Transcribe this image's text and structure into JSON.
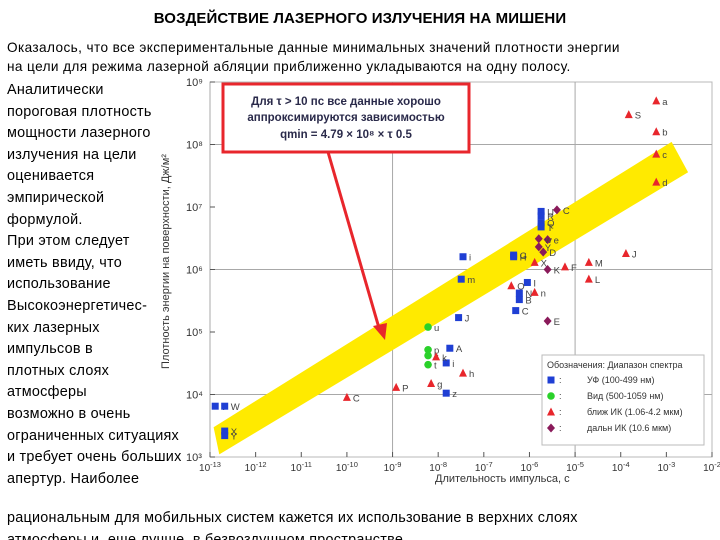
{
  "slide": {
    "title": "ВОЗДЕЙСТВИЕ ЛАЗЕРНОГО ИЗЛУЧЕНИЯ НА МИШЕНИ",
    "intro_lines": [
      "Оказалось, что все экспериментальные данные минимальных значений плотности энергии",
      "на цели для режима лазерной абляции приближенно укладываются на одну полосу."
    ],
    "side_lines": [
      "Аналитически",
      "пороговая плотность",
      "мощности лазерного",
      "излучения на цели",
      "оценивается",
      "эмпирической",
      "формулой.",
      "При этом следует",
      "иметь ввиду, что",
      "использование",
      "Высокоэнергетичес-",
      "ких лазерных",
      "импульсов в",
      "плотных слоях",
      "атмосферы",
      "возможно в очень",
      "ограниченных ситуациях",
      "и требует очень больших",
      "апертур. Наиболее"
    ],
    "tail_lines": [
      "рациональным для мобильных систем кажется их использование в верхних слоях",
      "атмосферы и, еще лучше, в безвоздушном пространстве."
    ]
  },
  "chart_data": {
    "type": "scatter",
    "xscale": "log",
    "yscale": "log",
    "xlabel": "Длительность импульса, с",
    "ylabel": "Плотность энергии на поверхности, Дж/м²",
    "xlim": [
      1e-13,
      0.01
    ],
    "ylim": [
      1000,
      1000000000
    ],
    "x_ticks": [
      {
        "value": 1e-13,
        "label": "10-13"
      },
      {
        "value": 1e-12,
        "label": "10-12"
      },
      {
        "value": 1e-11,
        "label": "10-11"
      },
      {
        "value": 1e-10,
        "label": "10-10"
      },
      {
        "value": 1e-09,
        "label": "10-9"
      },
      {
        "value": 1e-08,
        "label": "10-8"
      },
      {
        "value": 1e-07,
        "label": "10-7"
      },
      {
        "value": 1e-06,
        "label": "10-6"
      },
      {
        "value": 1e-05,
        "label": "10-5"
      },
      {
        "value": 0.0001,
        "label": "10-4"
      },
      {
        "value": 0.001,
        "label": "10-3"
      },
      {
        "value": 0.01,
        "label": "10-2"
      }
    ],
    "y_ticks": [
      {
        "value": 1000,
        "label": "10³"
      },
      {
        "value": 10000,
        "label": "10⁴"
      },
      {
        "value": 100000,
        "label": "10⁵"
      },
      {
        "value": 1000000,
        "label": "10⁶"
      },
      {
        "value": 10000000,
        "label": "10⁷"
      },
      {
        "value": 100000000,
        "label": "10⁸"
      },
      {
        "value": 1000000000,
        "label": "10⁹"
      }
    ],
    "grid_lines": {
      "x": [
        1e-13,
        1e-09,
        1e-05
      ],
      "y": [
        10000,
        1000000,
        100000000
      ]
    },
    "callout": {
      "line1": "Для τ > 10 пс все данные хорошо",
      "line2": "аппроксимируются зависимостью",
      "line3": "qmin = 4.79 × 10⁸ × τ 0.5",
      "border_color": "#e8262c"
    },
    "band": {
      "color": "#ffea00",
      "lower": [
        {
          "x": 1.6e-13,
          "y": 1100
        },
        {
          "x": 0.003,
          "y": 36000000
        }
      ],
      "upper": [
        {
          "x": 1.2e-13,
          "y": 3000
        },
        {
          "x": 0.0013,
          "y": 110000000
        }
      ]
    },
    "legend": {
      "title": "Обозначения: Диапазон спектра",
      "entries": [
        {
          "marker": "square",
          "color": "#1f3fd4",
          "label": "УФ (100-499 нм)"
        },
        {
          "marker": "circle",
          "color": "#2ad12a",
          "label": "Вид (500-1059 нм)"
        },
        {
          "marker": "triangle",
          "color": "#e8262c",
          "label": "ближ ИК (1.06-4.2 мкм)"
        },
        {
          "marker": "diamond",
          "color": "#8a1a5a",
          "label": "дальн ИК (10.6 мкм)"
        }
      ]
    },
    "series": [
      {
        "name": "УФ (100-499 нм)",
        "marker": "square",
        "color": "#1f3fd4",
        "points": [
          {
            "x": 1.3e-13,
            "y": 6500,
            "label": "v"
          },
          {
            "x": 2.1e-13,
            "y": 6500,
            "label": "W"
          },
          {
            "x": 2.1e-13,
            "y": 2600,
            "label": "X"
          },
          {
            "x": 2.1e-13,
            "y": 2200,
            "label": "Y"
          },
          {
            "x": 3.5e-08,
            "y": 1600000,
            "label": "i"
          },
          {
            "x": 3.2e-08,
            "y": 700000,
            "label": "m"
          },
          {
            "x": 2.8e-08,
            "y": 170000,
            "label": "J"
          },
          {
            "x": 1.8e-08,
            "y": 55000,
            "label": "A"
          },
          {
            "x": 1.5e-08,
            "y": 32000,
            "label": "i"
          },
          {
            "x": 1.5e-08,
            "y": 10500,
            "label": "z"
          },
          {
            "x": 4.5e-07,
            "y": 1700000,
            "label": "G"
          },
          {
            "x": 4.5e-07,
            "y": 1600000,
            "label": "H"
          },
          {
            "x": 9e-07,
            "y": 620000,
            "label": "I"
          },
          {
            "x": 6e-07,
            "y": 420000,
            "label": "N"
          },
          {
            "x": 6e-07,
            "y": 330000,
            "label": "B"
          },
          {
            "x": 5e-07,
            "y": 220000,
            "label": "C"
          },
          {
            "x": 1.8e-06,
            "y": 8500000,
            "label": "U"
          },
          {
            "x": 1.8e-06,
            "y": 7200000,
            "label": "R"
          },
          {
            "x": 1.8e-06,
            "y": 5600000,
            "label": "Q"
          },
          {
            "x": 1.8e-06,
            "y": 4800000,
            "label": "T"
          }
        ]
      },
      {
        "name": "Вид (500-1059 нм)",
        "marker": "circle",
        "color": "#2ad12a",
        "points": [
          {
            "x": 6e-09,
            "y": 120000,
            "label": "u"
          },
          {
            "x": 6e-09,
            "y": 52000,
            "label": "p"
          },
          {
            "x": 6e-09,
            "y": 42000,
            "label": "s"
          },
          {
            "x": 6e-09,
            "y": 30000,
            "label": "t"
          }
        ]
      },
      {
        "name": "ближ ИК (1.06-4.2 мкм)",
        "marker": "triangle",
        "color": "#e8262c",
        "points": [
          {
            "x": 0.0006,
            "y": 500000000,
            "label": "a"
          },
          {
            "x": 0.0006,
            "y": 160000000,
            "label": "b"
          },
          {
            "x": 0.0006,
            "y": 70000000,
            "label": "c"
          },
          {
            "x": 0.0006,
            "y": 25000000,
            "label": "d"
          },
          {
            "x": 0.00015,
            "y": 300000000,
            "label": "S"
          },
          {
            "x": 0.00013,
            "y": 1800000,
            "label": "J"
          },
          {
            "x": 2e-05,
            "y": 1300000,
            "label": "M"
          },
          {
            "x": 2e-05,
            "y": 700000,
            "label": "L"
          },
          {
            "x": 6e-06,
            "y": 1100000,
            "label": "F"
          },
          {
            "x": 1.3e-06,
            "y": 1300000,
            "label": "X"
          },
          {
            "x": 1.3e-06,
            "y": 430000,
            "label": "n"
          },
          {
            "x": 4e-07,
            "y": 550000,
            "label": "O"
          },
          {
            "x": 3.5e-08,
            "y": 22000,
            "label": "h"
          },
          {
            "x": 9e-09,
            "y": 40000,
            "label": "k"
          },
          {
            "x": 7e-09,
            "y": 15000,
            "label": "g"
          },
          {
            "x": 1.2e-09,
            "y": 13000,
            "label": "P"
          },
          {
            "x": 1e-10,
            "y": 9000,
            "label": "C"
          }
        ]
      },
      {
        "name": "дальн ИК (10.6 мкм)",
        "marker": "diamond",
        "color": "#8a1a5a",
        "points": [
          {
            "x": 2.5e-06,
            "y": 3000000,
            "label": "e"
          },
          {
            "x": 1.6e-06,
            "y": 3100000,
            "label": "w"
          },
          {
            "x": 1.6e-06,
            "y": 2300000,
            "label": "Y"
          },
          {
            "x": 2e-06,
            "y": 1900000,
            "label": "D"
          },
          {
            "x": 4e-06,
            "y": 9000000,
            "label": "C"
          },
          {
            "x": 2.5e-06,
            "y": 1000000,
            "label": "K"
          },
          {
            "x": 2.5e-06,
            "y": 150000,
            "label": "E"
          }
        ]
      }
    ]
  }
}
